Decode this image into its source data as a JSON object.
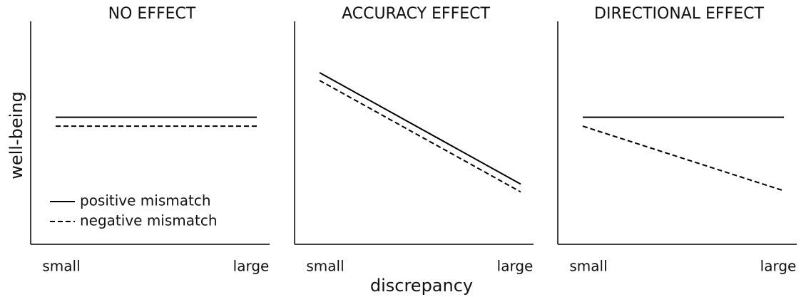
{
  "chart_data": [
    {
      "type": "line",
      "title": "NO EFFECT",
      "ylabel": "well-being",
      "categories": [
        "small",
        "large"
      ],
      "ylim": [
        0,
        100
      ],
      "legend": "lower left",
      "series": [
        {
          "name": "positive mismatch",
          "color": "#000000",
          "dash": "solid",
          "values": [
            57,
            57
          ]
        },
        {
          "name": "negative mismatch",
          "color": "#000000",
          "dash": "dashed",
          "values": [
            53,
            53
          ]
        }
      ]
    },
    {
      "type": "line",
      "title": "ACCURACY EFFECT",
      "xlabel": "discrepancy",
      "categories": [
        "small",
        "large"
      ],
      "ylim": [
        0,
        100
      ],
      "series": [
        {
          "name": "positive mismatch",
          "color": "#000000",
          "dash": "solid",
          "values": [
            77,
            27
          ]
        },
        {
          "name": "negative mismatch",
          "color": "#000000",
          "dash": "dashed",
          "values": [
            73.5,
            23.5
          ]
        }
      ]
    },
    {
      "type": "line",
      "title": "DIRECTIONAL EFFECT",
      "categories": [
        "small",
        "large"
      ],
      "ylim": [
        0,
        100
      ],
      "series": [
        {
          "name": "positive mismatch",
          "color": "#000000",
          "dash": "solid",
          "values": [
            57,
            57
          ]
        },
        {
          "name": "negative mismatch",
          "color": "#000000",
          "dash": "dashed",
          "values": [
            53,
            24
          ]
        }
      ]
    }
  ]
}
